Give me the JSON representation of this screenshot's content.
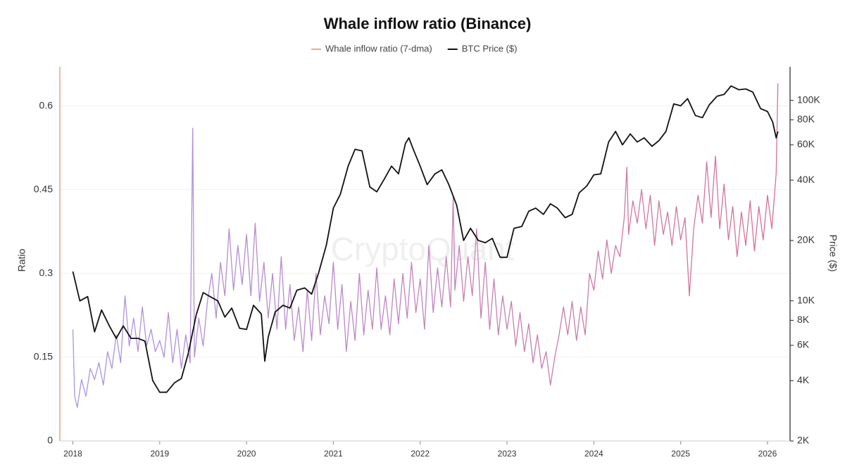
{
  "chart_data": {
    "type": "line",
    "title": "Whale inflow ratio (Binance)",
    "watermark": "CryptoQuant",
    "y_label": "Ratio",
    "y2_label": "Price ($)",
    "xlim": [
      2017.85,
      2026.26
    ],
    "xticks": [
      2018,
      2019,
      2020,
      2021,
      2022,
      2023,
      2024,
      2025,
      2026
    ],
    "ylim": [
      0,
      0.67
    ],
    "yticks": [
      0,
      0.15,
      0.3,
      0.45,
      0.6
    ],
    "y2lim": [
      2000,
      147000
    ],
    "y2scale": "log",
    "y2ticks": [
      {
        "value": 2000,
        "label": "2K"
      },
      {
        "value": 4000,
        "label": "4K"
      },
      {
        "value": 6000,
        "label": "6K"
      },
      {
        "value": 8000,
        "label": "8K"
      },
      {
        "value": 10000,
        "label": "10K"
      },
      {
        "value": 20000,
        "label": "20K"
      },
      {
        "value": 40000,
        "label": "40K"
      },
      {
        "value": 60000,
        "label": "60K"
      },
      {
        "value": 80000,
        "label": "80K"
      },
      {
        "value": 100000,
        "label": "100K"
      }
    ],
    "grid": true,
    "series": [
      {
        "name": "Whale inflow ratio (7-dma)",
        "colors": [
          "#a996e8",
          "#d9708f"
        ],
        "legend_color": "#e8a89a",
        "x": [
          2018.0,
          2018.02,
          2018.05,
          2018.1,
          2018.15,
          2018.2,
          2018.25,
          2018.3,
          2018.35,
          2018.4,
          2018.45,
          2018.5,
          2018.55,
          2018.6,
          2018.65,
          2018.7,
          2018.75,
          2018.8,
          2018.85,
          2018.9,
          2018.95,
          2019.0,
          2019.05,
          2019.1,
          2019.15,
          2019.2,
          2019.25,
          2019.3,
          2019.35,
          2019.38,
          2019.4,
          2019.45,
          2019.5,
          2019.55,
          2019.6,
          2019.65,
          2019.7,
          2019.75,
          2019.8,
          2019.85,
          2019.9,
          2019.95,
          2020.0,
          2020.05,
          2020.1,
          2020.15,
          2020.2,
          2020.25,
          2020.3,
          2020.35,
          2020.4,
          2020.45,
          2020.5,
          2020.55,
          2020.6,
          2020.65,
          2020.7,
          2020.75,
          2020.8,
          2020.85,
          2020.9,
          2020.95,
          2021.0,
          2021.05,
          2021.1,
          2021.15,
          2021.2,
          2021.25,
          2021.3,
          2021.35,
          2021.4,
          2021.45,
          2021.5,
          2021.55,
          2021.6,
          2021.65,
          2021.7,
          2021.75,
          2021.8,
          2021.85,
          2021.9,
          2021.95,
          2022.0,
          2022.05,
          2022.1,
          2022.15,
          2022.2,
          2022.25,
          2022.3,
          2022.35,
          2022.38,
          2022.4,
          2022.45,
          2022.5,
          2022.55,
          2022.6,
          2022.65,
          2022.7,
          2022.75,
          2022.8,
          2022.85,
          2022.9,
          2022.95,
          2023.0,
          2023.05,
          2023.1,
          2023.15,
          2023.2,
          2023.25,
          2023.3,
          2023.35,
          2023.4,
          2023.45,
          2023.5,
          2023.55,
          2023.6,
          2023.65,
          2023.7,
          2023.75,
          2023.8,
          2023.85,
          2023.9,
          2023.95,
          2024.0,
          2024.05,
          2024.1,
          2024.15,
          2024.2,
          2024.25,
          2024.3,
          2024.35,
          2024.38,
          2024.4,
          2024.45,
          2024.5,
          2024.55,
          2024.6,
          2024.65,
          2024.7,
          2024.75,
          2024.8,
          2024.85,
          2024.9,
          2024.95,
          2025.0,
          2025.05,
          2025.1,
          2025.15,
          2025.2,
          2025.25,
          2025.3,
          2025.35,
          2025.4,
          2025.45,
          2025.5,
          2025.55,
          2025.6,
          2025.65,
          2025.7,
          2025.75,
          2025.8,
          2025.85,
          2025.9,
          2025.95,
          2026.0,
          2026.05,
          2026.1,
          2026.12
        ],
        "values": [
          0.2,
          0.08,
          0.06,
          0.11,
          0.08,
          0.13,
          0.11,
          0.14,
          0.1,
          0.16,
          0.13,
          0.19,
          0.14,
          0.26,
          0.17,
          0.22,
          0.16,
          0.24,
          0.17,
          0.2,
          0.16,
          0.18,
          0.15,
          0.23,
          0.14,
          0.2,
          0.13,
          0.19,
          0.14,
          0.56,
          0.15,
          0.22,
          0.17,
          0.25,
          0.3,
          0.22,
          0.32,
          0.26,
          0.38,
          0.27,
          0.35,
          0.28,
          0.37,
          0.26,
          0.39,
          0.25,
          0.32,
          0.22,
          0.3,
          0.2,
          0.33,
          0.2,
          0.28,
          0.18,
          0.24,
          0.16,
          0.27,
          0.18,
          0.3,
          0.19,
          0.26,
          0.21,
          0.32,
          0.2,
          0.28,
          0.16,
          0.25,
          0.18,
          0.3,
          0.19,
          0.27,
          0.2,
          0.31,
          0.2,
          0.26,
          0.19,
          0.29,
          0.21,
          0.3,
          0.22,
          0.32,
          0.23,
          0.29,
          0.2,
          0.35,
          0.23,
          0.31,
          0.24,
          0.33,
          0.24,
          0.44,
          0.27,
          0.35,
          0.25,
          0.33,
          0.26,
          0.38,
          0.22,
          0.32,
          0.2,
          0.29,
          0.19,
          0.26,
          0.2,
          0.25,
          0.17,
          0.23,
          0.16,
          0.21,
          0.14,
          0.19,
          0.13,
          0.16,
          0.1,
          0.15,
          0.19,
          0.24,
          0.19,
          0.25,
          0.18,
          0.24,
          0.19,
          0.3,
          0.27,
          0.34,
          0.29,
          0.36,
          0.3,
          0.35,
          0.33,
          0.4,
          0.49,
          0.37,
          0.43,
          0.39,
          0.45,
          0.38,
          0.44,
          0.35,
          0.43,
          0.37,
          0.41,
          0.35,
          0.42,
          0.36,
          0.4,
          0.26,
          0.38,
          0.44,
          0.39,
          0.5,
          0.4,
          0.51,
          0.38,
          0.46,
          0.36,
          0.42,
          0.33,
          0.41,
          0.35,
          0.43,
          0.34,
          0.42,
          0.36,
          0.44,
          0.38,
          0.48,
          0.64
        ]
      },
      {
        "name": "BTC Price ($)",
        "color": "#111111",
        "axis": "y2",
        "x": [
          2018.0,
          2018.08,
          2018.17,
          2018.25,
          2018.33,
          2018.42,
          2018.5,
          2018.58,
          2018.67,
          2018.75,
          2018.83,
          2018.92,
          2019.0,
          2019.08,
          2019.17,
          2019.25,
          2019.33,
          2019.42,
          2019.5,
          2019.58,
          2019.67,
          2019.75,
          2019.83,
          2019.92,
          2020.0,
          2020.08,
          2020.17,
          2020.21,
          2020.25,
          2020.33,
          2020.42,
          2020.5,
          2020.58,
          2020.67,
          2020.75,
          2020.83,
          2020.92,
          2021.0,
          2021.08,
          2021.17,
          2021.25,
          2021.33,
          2021.42,
          2021.5,
          2021.58,
          2021.67,
          2021.75,
          2021.83,
          2021.87,
          2021.92,
          2022.0,
          2022.08,
          2022.17,
          2022.25,
          2022.33,
          2022.42,
          2022.5,
          2022.58,
          2022.67,
          2022.75,
          2022.83,
          2022.92,
          2023.0,
          2023.08,
          2023.17,
          2023.25,
          2023.33,
          2023.42,
          2023.5,
          2023.58,
          2023.67,
          2023.75,
          2023.83,
          2023.92,
          2024.0,
          2024.08,
          2024.17,
          2024.25,
          2024.33,
          2024.42,
          2024.5,
          2024.58,
          2024.67,
          2024.75,
          2024.83,
          2024.92,
          2025.0,
          2025.08,
          2025.17,
          2025.25,
          2025.33,
          2025.42,
          2025.5,
          2025.58,
          2025.67,
          2025.75,
          2025.83,
          2025.92,
          2026.0,
          2026.06,
          2026.1,
          2026.12
        ],
        "values": [
          14000,
          10000,
          10500,
          7000,
          9000,
          7500,
          6500,
          7500,
          6500,
          6500,
          6300,
          4000,
          3500,
          3500,
          3900,
          4100,
          5500,
          8500,
          11000,
          10500,
          10000,
          8300,
          9200,
          7300,
          7200,
          9500,
          8600,
          5000,
          6600,
          8800,
          9500,
          9200,
          11300,
          11600,
          10800,
          13800,
          19000,
          29000,
          34000,
          47000,
          57000,
          56000,
          37000,
          35000,
          40000,
          47000,
          43000,
          61000,
          65000,
          57000,
          47000,
          38000,
          43000,
          45000,
          38000,
          30000,
          20000,
          23000,
          20000,
          19500,
          20500,
          16500,
          16500,
          23000,
          23500,
          28000,
          29000,
          27000,
          30500,
          29000,
          26000,
          27000,
          34500,
          37500,
          42500,
          43000,
          62000,
          70000,
          60000,
          68000,
          62000,
          65000,
          59000,
          63000,
          70000,
          96000,
          94000,
          102000,
          84000,
          82000,
          95000,
          105000,
          107000,
          118000,
          113000,
          114000,
          110000,
          91000,
          88000,
          78000,
          65000,
          70000
        ]
      }
    ]
  }
}
